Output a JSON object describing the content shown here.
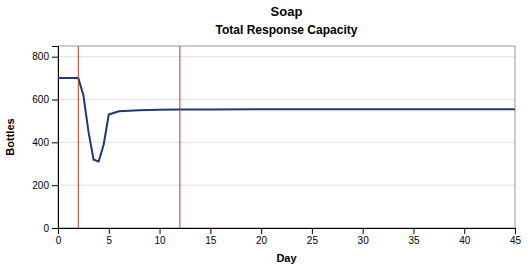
{
  "chart_data": {
    "type": "line",
    "title": "Soap",
    "subtitle": "Total Response Capacity",
    "xlabel": "Day",
    "ylabel": "Bottles",
    "x": [
      0,
      1,
      2,
      2.5,
      3,
      3.5,
      4,
      4.5,
      5,
      6,
      7,
      8,
      10,
      12,
      15,
      20,
      25,
      30,
      35,
      40,
      45
    ],
    "values": [
      700,
      700,
      700,
      620,
      450,
      320,
      310,
      390,
      530,
      545,
      548,
      550,
      552,
      553,
      554,
      555,
      555,
      555,
      555,
      555,
      555
    ],
    "color": "#1f3a6e",
    "vertical_lines": {
      "values": [
        2,
        12
      ],
      "color": "#c0392b"
    },
    "xlim": [
      0,
      45
    ],
    "ylim": [
      0,
      850
    ],
    "xticks": [
      0,
      5,
      10,
      15,
      20,
      25,
      30,
      35,
      40,
      45
    ],
    "yticks": [
      0,
      200,
      400,
      600,
      800
    ],
    "grid": "y"
  }
}
